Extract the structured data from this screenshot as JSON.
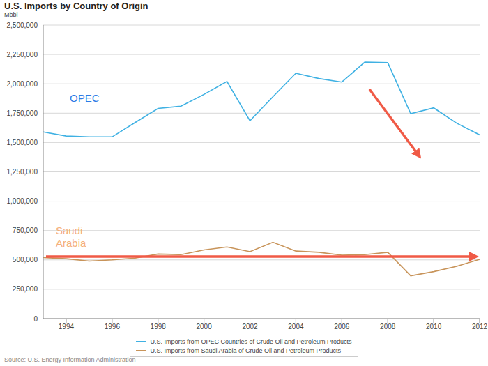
{
  "chart_data": {
    "type": "line",
    "title": "U.S. Imports by Country of Origin",
    "y_label": "Mbbl",
    "source": "Source: U.S. Energy Information Administration",
    "x": [
      1993,
      1994,
      1995,
      1996,
      1997,
      1998,
      1999,
      2000,
      2001,
      2002,
      2003,
      2004,
      2005,
      2006,
      2007,
      2008,
      2009,
      2010,
      2011,
      2012
    ],
    "series": [
      {
        "name": "U.S. Imports from OPEC Countries of Crude Oil and Petroleum Products",
        "color": "#3fb1e3",
        "values": [
          1590000,
          1555000,
          1548000,
          1548000,
          1670000,
          1790000,
          1810000,
          1910000,
          2020000,
          1685000,
          1890000,
          2090000,
          2045000,
          2015000,
          2185000,
          2180000,
          1745000,
          1795000,
          1665000,
          1565000
        ]
      },
      {
        "name": "U.S. Imports from Saudi Arabia of Crude Oil and Petroleum Products",
        "color": "#c8945a",
        "values": [
          520000,
          510000,
          490000,
          500000,
          515000,
          550000,
          545000,
          585000,
          610000,
          570000,
          650000,
          575000,
          565000,
          540000,
          545000,
          565000,
          365000,
          400000,
          445000,
          505000
        ]
      }
    ],
    "annotations": [
      {
        "text": "OPEC",
        "color": "#2f7be6"
      },
      {
        "text": "Saudi Arabia",
        "color": "#f5b07a"
      }
    ],
    "xlim": [
      1993,
      2012
    ],
    "xticks": [
      1994,
      1996,
      1998,
      2000,
      2002,
      2004,
      2006,
      2008,
      2010,
      2012
    ],
    "ylim": [
      0,
      2500000
    ],
    "yticks": [
      0,
      {
        "value": 250000,
        "label": "250,000"
      },
      {
        "value": 500000,
        "label": "500,000"
      },
      {
        "value": 750000,
        "label": "750,000"
      },
      {
        "value": 1000000,
        "label": "1,000,000"
      },
      {
        "value": 1250000,
        "label": "1,250,000"
      },
      {
        "value": 1500000,
        "label": "1,500,000"
      },
      {
        "value": 1750000,
        "label": "1,750,000"
      },
      {
        "value": 2000000,
        "label": "2,000,000"
      },
      {
        "value": 2250000,
        "label": "2,250,000"
      },
      {
        "value": 2500000,
        "label": "2,500,000"
      }
    ],
    "grid": true,
    "legend": "bottom"
  }
}
